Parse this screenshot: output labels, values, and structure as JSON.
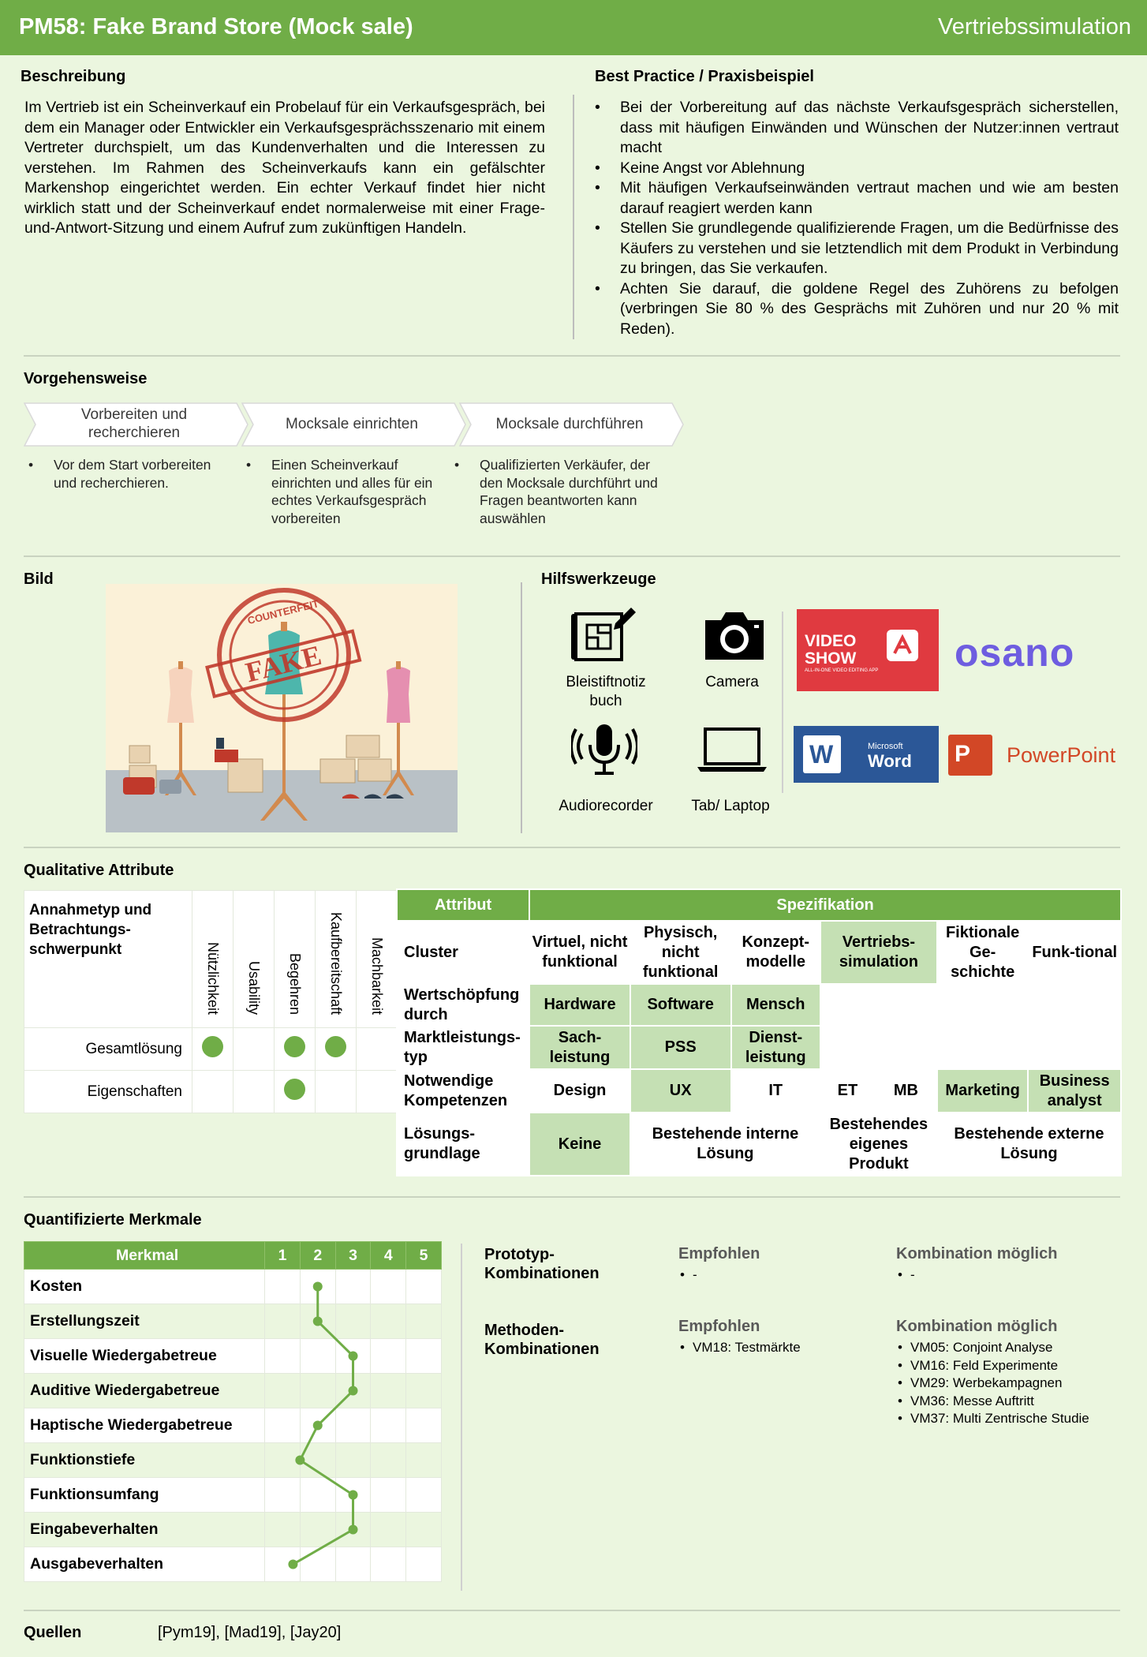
{
  "header": {
    "title": "PM58: Fake Brand Store (Mock sale)",
    "category": "Vertriebssimulation"
  },
  "beschreibung": {
    "heading": "Beschreibung",
    "text": "Im Vertrieb ist ein Scheinverkauf ein Probelauf für ein Verkaufsgespräch, bei dem ein Manager oder Entwickler ein Verkaufsgesprächsszenario mit einem Vertreter durchspielt, um das Kundenverhalten und die Interessen zu verstehen. Im Rahmen des Scheinverkaufs kann ein gefälschter Markenshop eingerichtet werden. Ein echter Verkauf findet hier nicht wirklich statt und der Scheinverkauf endet normalerweise mit einer Frage-und-Antwort-Sitzung und einem Aufruf zum zukünftigen Handeln."
  },
  "best_practice": {
    "heading": "Best Practice / Praxisbeispiel",
    "items": [
      "Bei der Vorbereitung auf das nächste Verkaufsgespräch sicherstellen, dass mit häufigen Einwänden und Wünschen der Nutzer:innen vertraut macht",
      "Keine Angst vor Ablehnung",
      "Mit häufigen Verkaufseinwänden vertraut machen und wie am besten darauf reagiert werden kann",
      "Stellen Sie grundlegende qualifizierende Fragen, um die Bedürfnisse des Käufers zu verstehen und sie letztendlich mit dem Produkt in Verbindung zu bringen, das Sie verkaufen.",
      "Achten Sie darauf, die goldene Regel des Zuhörens zu befolgen (verbringen Sie 80 % des Gesprächs mit Zuhören und nur 20 % mit Reden)."
    ]
  },
  "vorgehensweise": {
    "heading": "Vorgehensweise",
    "steps": [
      {
        "title_1": "Vorbereiten und",
        "title_2": "recherchieren",
        "desc_1": "Vor dem Start vorbereiten",
        "desc_2": "und recherchieren.",
        "desc_3": "",
        "desc_4": ""
      },
      {
        "title_1": "Mocksale einrichten",
        "title_2": "",
        "desc_1": "Einen Scheinverkauf",
        "desc_2": "einrichten und alles für ein",
        "desc_3": "echtes Verkaufsgespräch",
        "desc_4": "vorbereiten"
      },
      {
        "title_1": "Mocksale durchführen",
        "title_2": "",
        "desc_1": "Qualifizierten Verkäufer, der",
        "desc_2": "den Mocksale durchführt und",
        "desc_3": "Fragen beantworten kann",
        "desc_4": "auswählen"
      }
    ]
  },
  "bild": {
    "heading": "Bild",
    "stamp_text": "FAKE",
    "stamp_ring": "COUNTERFEIT"
  },
  "hilfswerkzeuge": {
    "heading": "Hilfswerkzeuge",
    "tools": [
      {
        "label_1": "Bleistiftnotiz",
        "label_2": "buch",
        "icon": "blueprint-pencil-icon"
      },
      {
        "label_1": "Camera",
        "label_2": "",
        "icon": "camera-icon"
      },
      {
        "label_1": "Audiorecorder",
        "label_2": "",
        "icon": "microphone-icon"
      },
      {
        "label_1": "Tab/ Laptop",
        "label_2": "",
        "icon": "laptop-icon"
      }
    ],
    "logos": {
      "videoshow_1": "VIDEO",
      "videoshow_2": "SHOW",
      "videoshow_sub": "ALL-IN-ONE VIDEO EDITING APP",
      "osano": "osano",
      "word_small": "Microsoft",
      "word": "Word",
      "word_letter": "W",
      "powerpoint": "PowerPoint",
      "powerpoint_letter": "P"
    }
  },
  "qualitative": {
    "heading": "Qualitative Attribute",
    "corner": "Annahmetyp und Betrachtungs-schwerpunkt",
    "columns": [
      "Nützlichkeit",
      "Usability",
      "Begehren",
      "Kaufbereitschaft",
      "Machbarkeit"
    ],
    "rows": [
      {
        "label": "Gesamtlösung",
        "dots": [
          true,
          false,
          true,
          true,
          false
        ]
      },
      {
        "label": "Eigenschaften",
        "dots": [
          false,
          false,
          true,
          false,
          false
        ]
      }
    ]
  },
  "spezifikation": {
    "h_attr": "Attribut",
    "h_spec": "Spezifikation",
    "cluster": "Cluster",
    "c1": "Virtuel, nicht funktional",
    "c2": "Physisch, nicht funktional",
    "c3": "Konzept-modelle",
    "c4": "Vertriebs-simulation",
    "c5": "Fiktionale Ge-schichte",
    "c6": "Funk-tional",
    "wert": "Wertschöpfung durch",
    "w1": "Hardware",
    "w2": "Software",
    "w3": "Mensch",
    "markt": "Marktleistungs-typ",
    "m1": "Sach-leistung",
    "m2": "PSS",
    "m3": "Dienst-leistung",
    "notw": "Notwendige Kompetenzen",
    "n1": "Design",
    "n2": "UX",
    "n3": "IT",
    "n4": "ET",
    "n5": "MB",
    "n6": "Marketing",
    "n7": "Business analyst",
    "loes": "Lösungs-grundlage",
    "l1": "Keine",
    "l2": "Bestehende interne Lösung",
    "l3": "Bestehendes eigenes Produkt",
    "l4": "Bestehende externe Lösung"
  },
  "quantifiziert": {
    "heading": "Quantifizierte Merkmale",
    "col_label": "Merkmal",
    "scale": [
      "1",
      "2",
      "3",
      "4",
      "5"
    ],
    "rows": [
      {
        "label": "Kosten",
        "value": 2
      },
      {
        "label": "Erstellungszeit",
        "value": 2
      },
      {
        "label": "Visuelle Wiedergabetreue",
        "value": 3
      },
      {
        "label": "Auditive Wiedergabetreue",
        "value": 3
      },
      {
        "label": "Haptische Wiedergabetreue",
        "value": 2
      },
      {
        "label": "Funktionstiefe",
        "value": 1.5
      },
      {
        "label": "Funktionsumfang",
        "value": 3
      },
      {
        "label": "Eingabeverhalten",
        "value": 3
      },
      {
        "label": "Ausgabeverhalten",
        "value": 1.3
      }
    ],
    "color": "#70ad47"
  },
  "kombinationen": {
    "prototyp_label": "Prototyp-Kombinationen",
    "methoden_label": "Methoden-Kombinationen",
    "empfohlen": "Empfohlen",
    "kombination": "Kombination möglich",
    "proto_empfohlen": [
      "-"
    ],
    "proto_kombination": [
      "-"
    ],
    "methoden_empfohlen": [
      "VM18: Testmärkte"
    ],
    "methoden_kombination": [
      "VM05: Conjoint Analyse",
      "VM16: Feld Experimente",
      "VM29: Werbekampagnen",
      "VM36: Messe Auftritt",
      "VM37: Multi Zentrische Studie"
    ]
  },
  "quellen": {
    "label": "Quellen",
    "text": "[Pym19], [Mad19], [Jay20]"
  }
}
